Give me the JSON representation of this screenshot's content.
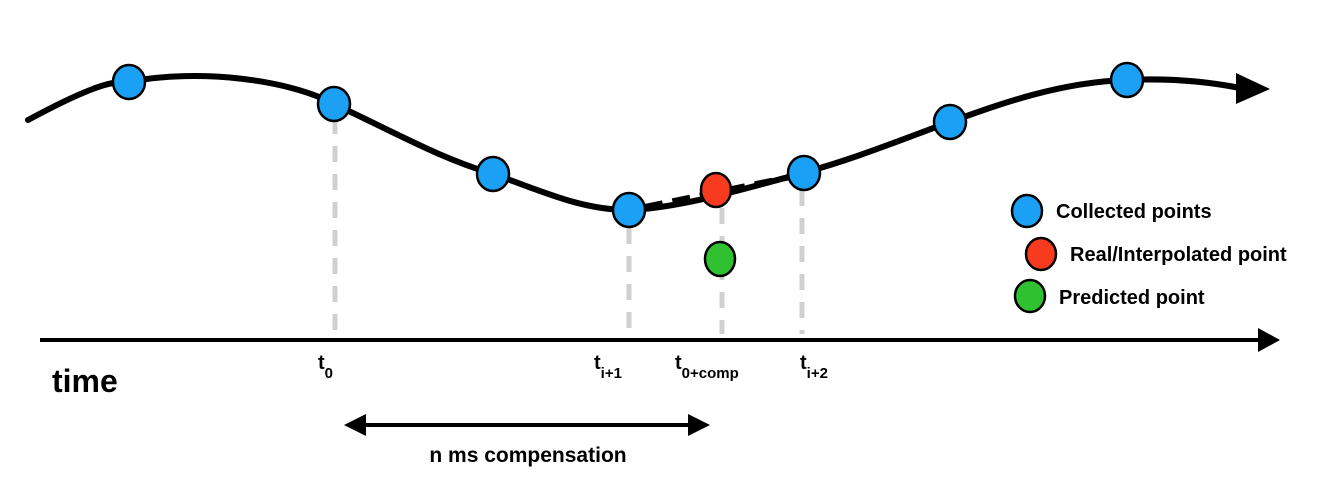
{
  "axis": {
    "label": "time"
  },
  "time_ticks": [
    {
      "id": "t0",
      "base": "t",
      "sub": "0"
    },
    {
      "id": "ti1",
      "base": "t",
      "sub": "i+1"
    },
    {
      "id": "t0comp",
      "base": "t",
      "sub": "0+comp"
    },
    {
      "id": "ti2",
      "base": "t",
      "sub": "i+2"
    }
  ],
  "compensation": {
    "label": "n ms compensation"
  },
  "legend": [
    {
      "label": "Collected points",
      "color": "#1aa1f5",
      "icon": "blue-circle"
    },
    {
      "label": "Real/Interpolated point",
      "color": "#f83a1e",
      "icon": "red-circle"
    },
    {
      "label": "Predicted point",
      "color": "#2fc12f",
      "icon": "green-circle"
    }
  ],
  "colors": {
    "collected": "#1aa1f5",
    "interpolated": "#f83a1e",
    "predicted": "#2fc12f",
    "curve": "#000000",
    "guide": "#d0d0d0"
  }
}
